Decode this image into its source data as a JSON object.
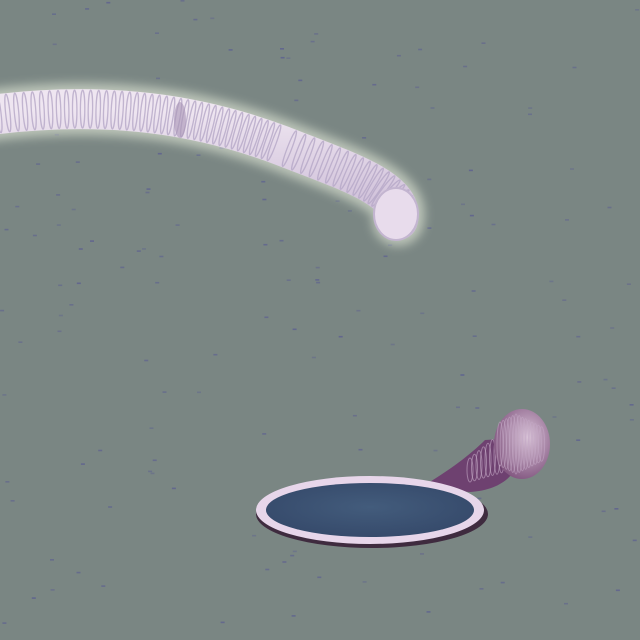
{
  "scene": {
    "background_color": "#7a8683",
    "speck_color": "#5a5c92",
    "glowing_worm": {
      "icon": "glowing-ribbed-worm",
      "body_color": "#e3d6e6",
      "rib_color": "#b5a8c7",
      "glow_color": "#eaf3dc"
    },
    "portal_creature": {
      "icon": "hole-with-curled-tail",
      "hole_fill": "#3f5674",
      "rim_color": "#e7d6ea",
      "rim_shadow": "#3f2b3f",
      "tail_color": "#7d4f7c",
      "tail_ring_color": "#c4aac6"
    }
  }
}
